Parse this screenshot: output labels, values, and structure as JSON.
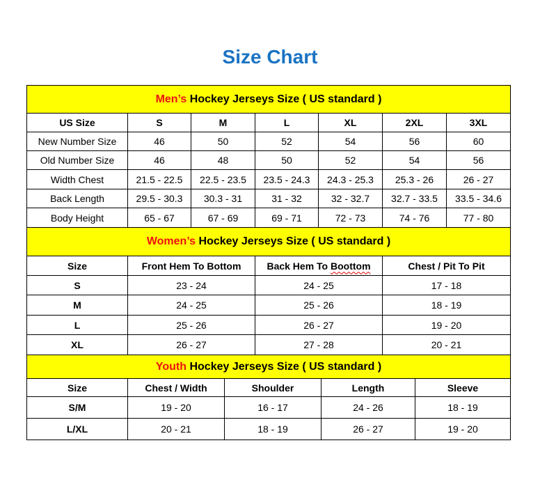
{
  "title": "Size Chart",
  "colors": {
    "title": "#1a73c2",
    "banner": "#ffff00",
    "highlight": "#ee1111"
  },
  "sections": [
    {
      "highlight": "Men’s",
      "banner": " Hockey Jerseys Size ( US standard )",
      "headers": [
        "US Size",
        "S",
        "M",
        "L",
        "XL",
        "2XL",
        "3XL"
      ],
      "rows": [
        [
          "New Number Size",
          "46",
          "50",
          "52",
          "54",
          "56",
          "60"
        ],
        [
          "Old Number Size",
          "46",
          "48",
          "50",
          "52",
          "54",
          "56"
        ],
        [
          "Width Chest",
          "21.5 - 22.5",
          "22.5 - 23.5",
          "23.5 - 24.3",
          "24.3 - 25.3",
          "25.3 - 26",
          "26 - 27"
        ],
        [
          "Back Length",
          "29.5 - 30.3",
          "30.3 - 31",
          "31 - 32",
          "32 - 32.7",
          "32.7 - 33.5",
          "33.5 - 34.6"
        ],
        [
          "Body Height",
          "65 - 67",
          "67 - 69",
          "69 - 71",
          "72 - 73",
          "74 - 76",
          "77 - 80"
        ]
      ]
    },
    {
      "highlight": "Women’s",
      "banner": " Hockey Jerseys Size ( US standard )",
      "headers": [
        "Size",
        "Front Hem To Bottom",
        "Back Hem To Boottom",
        "Chest / Pit To Pit"
      ],
      "rows": [
        [
          "S",
          "23 - 24",
          "24 - 25",
          "17 - 18"
        ],
        [
          "M",
          "24 - 25",
          "25 - 26",
          "18 - 19"
        ],
        [
          "L",
          "25 - 26",
          "26 - 27",
          "19 - 20"
        ],
        [
          "XL",
          "26 - 27",
          "27 - 28",
          "20 - 21"
        ]
      ]
    },
    {
      "highlight": "Youth",
      "banner": " Hockey Jerseys Size ( US standard )",
      "headers": [
        "Size",
        "Chest / Width",
        "Shoulder",
        "Length",
        "Sleeve"
      ],
      "rows": [
        [
          "S/M",
          "19 - 20",
          "16 - 17",
          "24 - 26",
          "18 - 19"
        ],
        [
          "L/XL",
          "20 - 21",
          "18 - 19",
          "26 - 27",
          "19 - 20"
        ]
      ]
    }
  ]
}
